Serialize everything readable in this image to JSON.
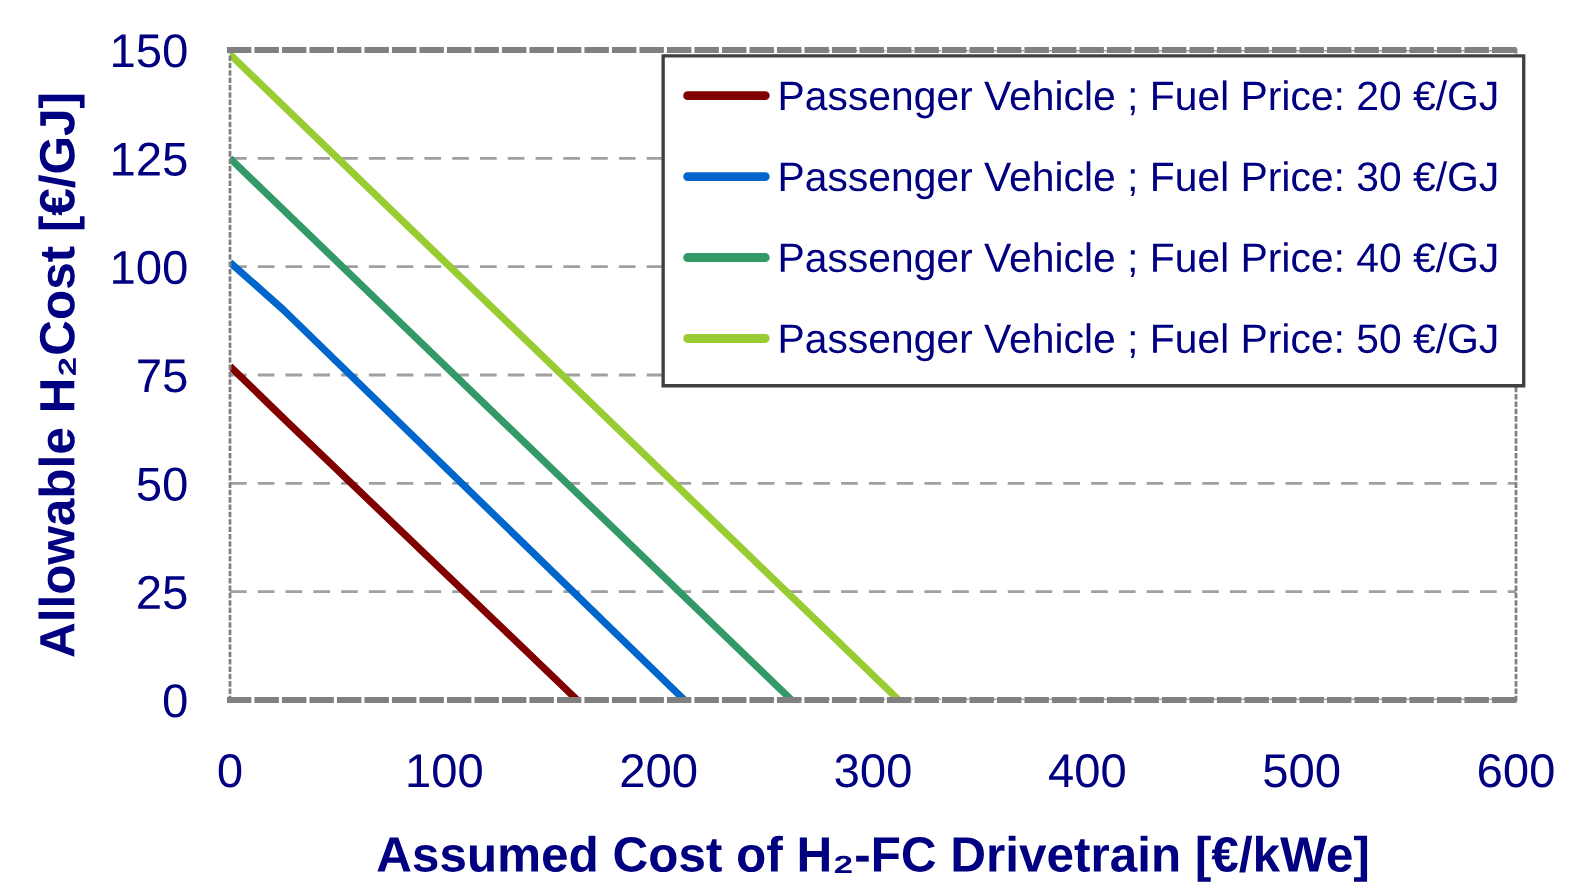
{
  "chart_data": {
    "type": "line",
    "xlabel": "Assumed Cost of H₂-FC Drivetrain [€/kWe]",
    "ylabel": "Allowable H₂Cost [€/GJ]",
    "xlim": [
      0,
      600
    ],
    "xticks": [
      0,
      100,
      200,
      300,
      400,
      500,
      600
    ],
    "ylim": [
      0,
      150
    ],
    "yticks": [
      0,
      25,
      50,
      75,
      100,
      125,
      150
    ],
    "grid": "y",
    "legend": "top right",
    "line_style": "solid",
    "series": [
      {
        "name": "Passenger Vehicle ; Fuel Price: 20 €/GJ",
        "color": "#800000",
        "x": [
          0,
          25,
          162
        ],
        "values": [
          77,
          65,
          0
        ]
      },
      {
        "name": "Passenger Vehicle ; Fuel Price: 30 €/GJ",
        "color": "#0066cc",
        "x": [
          0,
          25,
          212
        ],
        "values": [
          101,
          90,
          0
        ]
      },
      {
        "name": "Passenger Vehicle ; Fuel Price: 40 €/GJ",
        "color": "#339966",
        "x": [
          0,
          262
        ],
        "values": [
          125,
          0
        ]
      },
      {
        "name": "Passenger Vehicle ; Fuel Price: 50 €/GJ",
        "color": "#99cc33",
        "x": [
          0,
          312
        ],
        "values": [
          149,
          0
        ]
      }
    ]
  }
}
